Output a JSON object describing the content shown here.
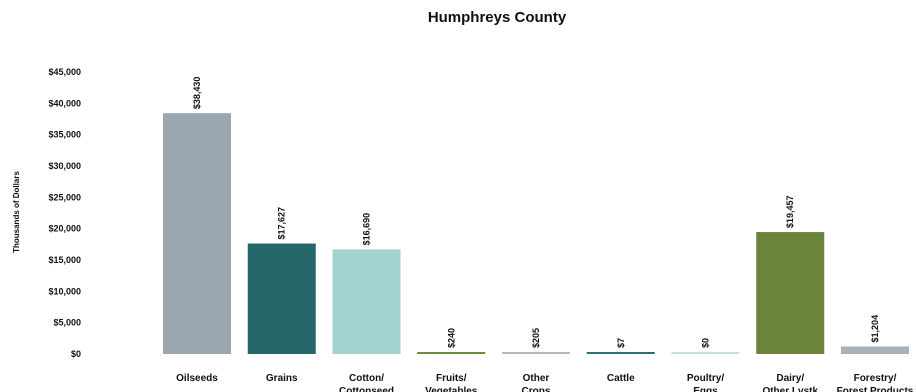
{
  "chart_data": {
    "type": "bar",
    "title": "Humphreys County",
    "ylabel": "Thousands  of Dollars",
    "xlabel": "",
    "ylim": [
      0,
      45000
    ],
    "yticks": [
      0,
      5000,
      10000,
      15000,
      20000,
      25000,
      30000,
      35000,
      40000,
      45000
    ],
    "ytick_labels": [
      "$0",
      "$5,000",
      "$10,000",
      "$15,000",
      "$20,000",
      "$25,000",
      "$30,000",
      "$35,000",
      "$40,000",
      "$45,000"
    ],
    "grid": false,
    "categories": [
      [
        "Oilseeds"
      ],
      [
        "Grains"
      ],
      [
        "Cotton/",
        "Cottonseed"
      ],
      [
        "Fruits/",
        "Vegetables"
      ],
      [
        "Other",
        "Crops"
      ],
      [
        "Cattle"
      ],
      [
        "Poultry/",
        "Eggs"
      ],
      [
        "Dairy/",
        "Other Lvstk"
      ],
      [
        "Forestry/",
        "Forest Products"
      ]
    ],
    "values": [
      38430,
      17627,
      16690,
      240,
      205,
      7,
      0,
      19457,
      1204
    ],
    "data_labels": [
      "$38,430",
      "$17,627",
      "$16,690",
      "$240",
      "$205",
      "$7",
      "$0",
      "$19,457",
      "$1,204"
    ],
    "colors": [
      "#9aa6b0",
      "#26676b",
      "#a3d3ce",
      "#6b8c3c",
      "#b0bcc4",
      "#2e6e6e",
      "#bfe3df",
      "#6b843b",
      "#a7b1b9"
    ]
  }
}
